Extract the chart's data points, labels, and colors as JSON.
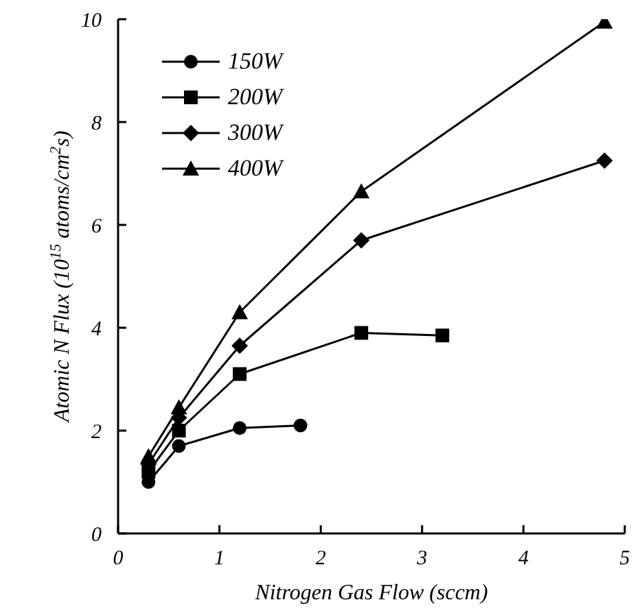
{
  "chart_data": {
    "type": "line",
    "xlabel": "Nitrogen Gas Flow (sccm)",
    "ylabel": "Atomic N Flux (10$^{15}$ atoms/cm$^{2}$s)",
    "xlim": [
      0,
      5
    ],
    "xticks": [
      0,
      1,
      2,
      3,
      4,
      5
    ],
    "ylim": [
      0,
      10
    ],
    "yticks": [
      0,
      2,
      4,
      6,
      8,
      10
    ],
    "grid": false,
    "legend": "top left",
    "line_style": "solid",
    "series": [
      {
        "name": "150W",
        "color": "#000000",
        "marker": "circle",
        "x": [
          0.3,
          0.6,
          1.2,
          1.8
        ],
        "values": [
          1.0,
          1.7,
          2.05,
          2.1
        ]
      },
      {
        "name": "200W",
        "color": "#000000",
        "marker": "square",
        "x": [
          0.3,
          0.6,
          1.2,
          2.4,
          3.2
        ],
        "values": [
          1.2,
          2.0,
          3.1,
          3.9,
          3.85
        ]
      },
      {
        "name": "300W",
        "color": "#000000",
        "marker": "diamond",
        "x": [
          0.3,
          0.6,
          1.2,
          2.4,
          4.8
        ],
        "values": [
          1.35,
          2.25,
          3.65,
          5.7,
          7.25
        ]
      },
      {
        "name": "400W",
        "color": "#000000",
        "marker": "triangle",
        "x": [
          0.3,
          0.6,
          1.2,
          2.4,
          4.8
        ],
        "values": [
          1.5,
          2.45,
          4.3,
          6.65,
          9.95
        ]
      }
    ]
  }
}
